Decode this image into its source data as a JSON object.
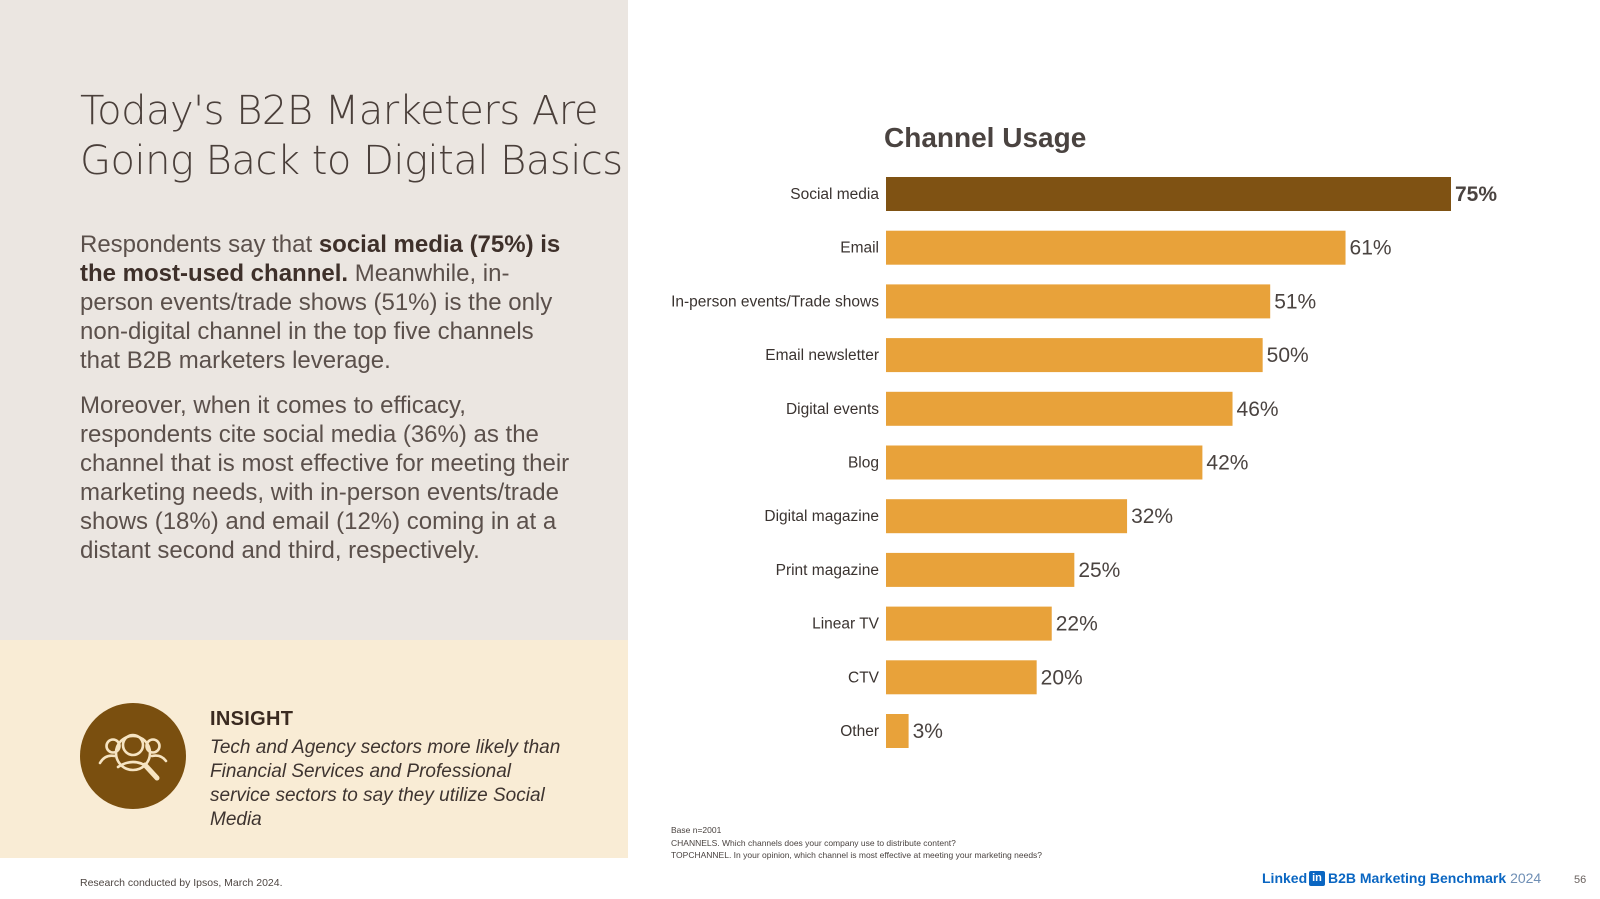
{
  "headline": {
    "line1": "Today's B2B Marketers Are",
    "line2": "Going Back to Digital Basics"
  },
  "paragraph1": {
    "pre": "Respondents say that ",
    "bold": "social media (75%) is the most-used channel.",
    "post": " Meanwhile, in-person events/trade shows (51%) is the only non-digital channel in the top five channels that B2B marketers leverage."
  },
  "paragraph2": "Moreover, when it comes to efficacy, respondents cite social media (36%) as the channel that is most effective for meeting their marketing needs, with in-person events/trade shows (18%) and email (12%) coming in at a distant second and third, respectively.",
  "insight": {
    "title": "INSIGHT",
    "text": "Tech and Agency sectors more likely than Financial Services and Professional service sectors to say they utilize Social Media",
    "icon": "people-search-icon"
  },
  "footer": {
    "research_note": "Research conducted by Ipsos, March 2024.",
    "base": "Base n=2001",
    "channels_q": "CHANNELS. Which channels does your company use to distribute content?",
    "topchannel_q": "TOPCHANNEL. In your opinion, which channel is most effective at meeting your marketing needs?",
    "logo_text": "Linked",
    "logo_in": "in",
    "report_name": "B2B Marketing Benchmark",
    "report_year": "2024",
    "page_number": "56"
  },
  "colors": {
    "highlight_bar": "#7f5213",
    "bar": "#e8a23a",
    "left_panel": "#ebe6e1",
    "insight_panel": "#f9ecd5",
    "insight_circle": "#7a4f0f"
  },
  "chart_data": {
    "type": "bar",
    "orientation": "horizontal",
    "title": "Channel Usage",
    "categories": [
      "Social media",
      "Email",
      "In-person events/Trade shows",
      "Email newsletter",
      "Digital events",
      "Blog",
      "Digital magazine",
      "Print magazine",
      "Linear TV",
      "CTV",
      "Other"
    ],
    "values": [
      75,
      61,
      51,
      50,
      46,
      42,
      32,
      25,
      22,
      20,
      3
    ],
    "value_labels": [
      "75%",
      "61%",
      "51%",
      "50%",
      "46%",
      "42%",
      "32%",
      "25%",
      "22%",
      "20%",
      "3%"
    ],
    "highlight_index": 0,
    "xlim": [
      0,
      100
    ],
    "grid": false,
    "legend": "none"
  }
}
